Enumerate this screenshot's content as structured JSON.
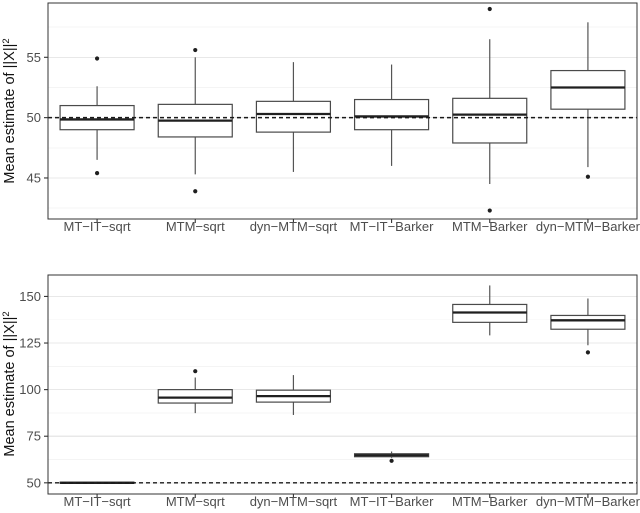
{
  "palette": {
    "background": "#ffffff",
    "panel_border": "#333333",
    "grid_major": "#e8e8e8",
    "grid_minor": "#f4f4f4",
    "box_stroke": "#4a4a4a",
    "box_fill": "#ffffff",
    "median_line": "#1f1f1f",
    "whisker": "#555555",
    "outlier": "#1f1f1f",
    "reference_line": "#1a1a1a",
    "tick_mark": "#333333",
    "tick_text": "#4d4d4d",
    "axis_title_text": "#111111"
  },
  "chart_data": [
    {
      "type": "boxplot",
      "title": "",
      "xlabel": "",
      "ylabel": "Mean estimate of ||X||",
      "ylabel_sup": "2",
      "legend": "none",
      "grid": "on",
      "ylim": [
        41.6,
        59.5
      ],
      "yticks": [
        45,
        50,
        55
      ],
      "minor_gridlines": [
        42.5,
        47.5,
        52.5,
        57.5
      ],
      "reference_line": 50,
      "reference_style": "dashed",
      "categories": [
        "MT−IT−sqrt",
        "MTM−sqrt",
        "dyn−MTM−sqrt",
        "MT−IT−Barker",
        "MTM−Barker",
        "dyn−MTM−Barker"
      ],
      "boxes": [
        {
          "category": "MT−IT−sqrt",
          "whisker_low": 46.5,
          "q1": 49.0,
          "median": 49.85,
          "q3": 51.0,
          "whisker_high": 52.6,
          "outliers": [
            54.9,
            45.4
          ]
        },
        {
          "category": "MTM−sqrt",
          "whisker_low": 45.3,
          "q1": 48.4,
          "median": 49.75,
          "q3": 51.1,
          "whisker_high": 55.0,
          "outliers": [
            55.6,
            43.9
          ]
        },
        {
          "category": "dyn−MTM−sqrt",
          "whisker_low": 45.5,
          "q1": 48.8,
          "median": 50.3,
          "q3": 51.35,
          "whisker_high": 54.6,
          "outliers": []
        },
        {
          "category": "MT−IT−Barker",
          "whisker_low": 46.0,
          "q1": 49.0,
          "median": 50.1,
          "q3": 51.5,
          "whisker_high": 54.4,
          "outliers": []
        },
        {
          "category": "MTM−Barker",
          "whisker_low": 44.5,
          "q1": 47.9,
          "median": 50.25,
          "q3": 51.6,
          "whisker_high": 56.5,
          "outliers": [
            59.0,
            42.3
          ]
        },
        {
          "category": "dyn−MTM−Barker",
          "whisker_low": 45.9,
          "q1": 50.7,
          "median": 52.5,
          "q3": 53.9,
          "whisker_high": 57.9,
          "outliers": [
            45.1
          ]
        }
      ]
    },
    {
      "type": "boxplot",
      "title": "",
      "xlabel": "",
      "ylabel": "Mean estimate of ||X||",
      "ylabel_sup": "2",
      "legend": "none",
      "grid": "on",
      "ylim": [
        44,
        161.5
      ],
      "yticks": [
        50,
        75,
        100,
        125,
        150
      ],
      "minor_gridlines": [
        62.5,
        87.5,
        112.5,
        137.5
      ],
      "reference_line": 50,
      "reference_style": "dashed",
      "categories": [
        "MT−IT−sqrt",
        "MTM−sqrt",
        "dyn−MTM−sqrt",
        "MT−IT−Barker",
        "MTM−Barker",
        "dyn−MTM−Barker"
      ],
      "boxes": [
        {
          "category": "MT−IT−sqrt",
          "whisker_low": 49.5,
          "q1": 49.8,
          "median": 50.0,
          "q3": 50.3,
          "whisker_high": 50.6,
          "outliers": []
        },
        {
          "category": "MTM−sqrt",
          "whisker_low": 87.4,
          "q1": 92.8,
          "median": 95.7,
          "q3": 100.0,
          "whisker_high": 106.5,
          "outliers": [
            109.9
          ]
        },
        {
          "category": "dyn−MTM−sqrt",
          "whisker_low": 86.4,
          "q1": 93.3,
          "median": 96.5,
          "q3": 99.7,
          "whisker_high": 107.8,
          "outliers": []
        },
        {
          "category": "MT−IT−Barker",
          "whisker_low": 63.4,
          "q1": 64.0,
          "median": 64.8,
          "q3": 65.6,
          "whisker_high": 66.8,
          "outliers": [
            61.8
          ]
        },
        {
          "category": "MTM−Barker",
          "whisker_low": 129.1,
          "q1": 136.1,
          "median": 141.4,
          "q3": 145.7,
          "whisker_high": 155.9,
          "outliers": []
        },
        {
          "category": "dyn−MTM−Barker",
          "whisker_low": 123.8,
          "q1": 132.4,
          "median": 137.2,
          "q3": 139.8,
          "whisker_high": 148.9,
          "outliers": [
            120.0
          ]
        }
      ]
    }
  ]
}
